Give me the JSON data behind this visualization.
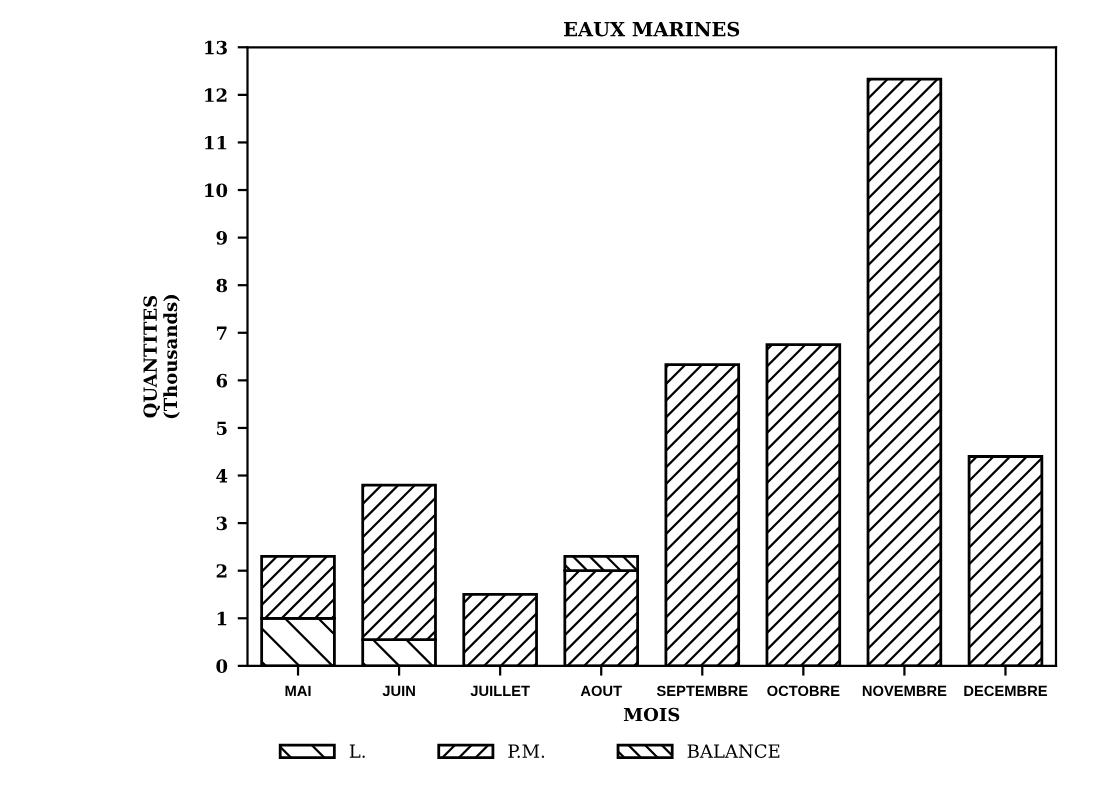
{
  "chart_data": {
    "type": "bar",
    "title": "EAUX MARINES",
    "xlabel": "MOIS",
    "ylabel": "QUANTITES\n(Thousands)",
    "categories": [
      "MAI",
      "JUIN",
      "JUILLET",
      "AOUT",
      "SEPTEMBRE",
      "OCTOBRE",
      "NOVEMBRE",
      "DECEMBRE"
    ],
    "stacked": true,
    "series": [
      {
        "name": "L.",
        "color": "#000000",
        "values": [
          1.0,
          0.55,
          null,
          null,
          null,
          null,
          null,
          null
        ]
      },
      {
        "name": "P.M.",
        "color": "#000000",
        "values": [
          1.3,
          3.25,
          1.5,
          2.0,
          6.33,
          6.75,
          12.33,
          4.4
        ]
      },
      {
        "name": "BALANCE",
        "color": "#000000",
        "values": [
          null,
          null,
          null,
          0.3,
          null,
          null,
          null,
          null
        ]
      }
    ],
    "ylim": [
      0,
      13
    ],
    "yticks": [
      0,
      1,
      2,
      3,
      4,
      5,
      6,
      7,
      8,
      9,
      10,
      11,
      12,
      13
    ],
    "grid": false,
    "legend": "bottom"
  }
}
